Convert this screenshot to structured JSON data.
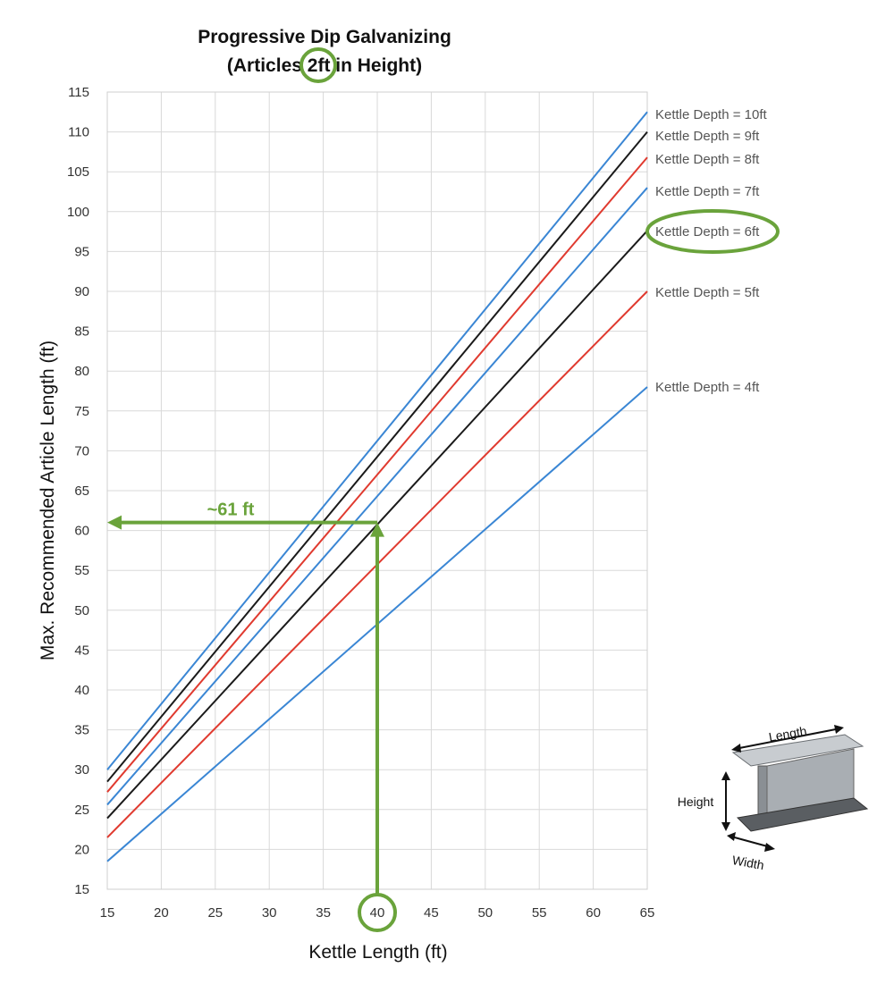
{
  "chart_data": {
    "type": "line",
    "title": "Progressive Dip Galvanizing",
    "subtitle_parts": [
      "(Articles ",
      "2ft",
      " in Height)"
    ],
    "xlabel": "Kettle Length (ft)",
    "ylabel": "Max. Recommended Article Length (ft)",
    "xlim": [
      15,
      65
    ],
    "ylim": [
      15,
      115
    ],
    "x_ticks": [
      15,
      20,
      25,
      30,
      35,
      40,
      45,
      50,
      55,
      60,
      65
    ],
    "y_ticks": [
      15,
      20,
      25,
      30,
      35,
      40,
      45,
      50,
      55,
      60,
      65,
      70,
      75,
      80,
      85,
      90,
      95,
      100,
      105,
      110,
      115
    ],
    "grid": true,
    "x": [
      15,
      65
    ],
    "series": [
      {
        "name": "Kettle Depth = 10ft",
        "values": [
          30.0,
          112.5
        ],
        "color": "#3a86d4"
      },
      {
        "name": "Kettle Depth = 9ft",
        "values": [
          28.5,
          110.0
        ],
        "color": "#1a1a1a"
      },
      {
        "name": "Kettle Depth = 8ft",
        "values": [
          27.2,
          106.8
        ],
        "color": "#e03a2f"
      },
      {
        "name": "Kettle Depth = 7ft",
        "values": [
          25.6,
          103.0
        ],
        "color": "#3a86d4"
      },
      {
        "name": "Kettle Depth = 6ft",
        "values": [
          23.9,
          97.6
        ],
        "color": "#1a1a1a"
      },
      {
        "name": "Kettle Depth = 5ft",
        "values": [
          21.5,
          90.0
        ],
        "color": "#e03a2f"
      },
      {
        "name": "Kettle Depth = 4ft",
        "values": [
          18.5,
          78.0
        ],
        "color": "#3a86d4"
      }
    ],
    "annotation": {
      "text": "~61 ft",
      "x": 40,
      "y": 61,
      "color": "#6aa33b"
    },
    "highlight": {
      "x_tick": 40,
      "series": "Kettle Depth = 6ft"
    }
  },
  "beam_diagram": {
    "length_label": "Length",
    "height_label": "Height",
    "width_label": "Width"
  }
}
